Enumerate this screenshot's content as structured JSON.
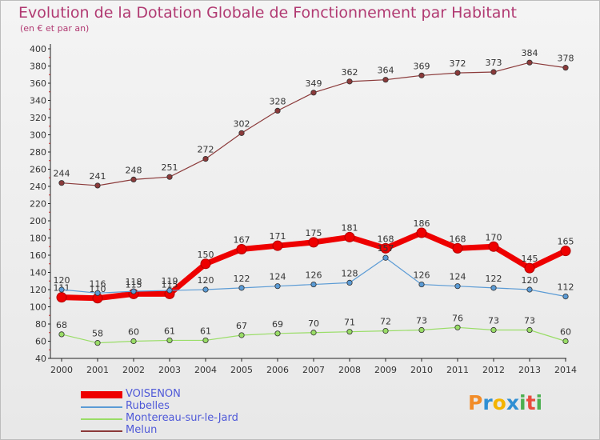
{
  "title": "Evolution de la Dotation Globale de Fonctionnement par Habitant",
  "subtitle": "(en € et par an)",
  "logo": {
    "letters": [
      "P",
      "r",
      "o",
      "x",
      "i",
      "t",
      "i"
    ],
    "colors": [
      "#f28c28",
      "#2f8fd3",
      "#f4b400",
      "#2f8fd3",
      "#4caf50",
      "#e94c3d",
      "#4caf50"
    ]
  },
  "chart_data": {
    "type": "line",
    "title": "Evolution de la Dotation Globale de Fonctionnement par Habitant",
    "subtitle": "(en € et par an)",
    "xlabel": "",
    "ylabel": "",
    "ylim": [
      40,
      400
    ],
    "ytick_step": 20,
    "x": [
      2000,
      2001,
      2002,
      2003,
      2004,
      2005,
      2006,
      2007,
      2008,
      2009,
      2010,
      2011,
      2012,
      2013,
      2014
    ],
    "series": [
      {
        "name": "VOISENON",
        "color": "#ee0000",
        "bold": true,
        "values": [
          111,
          110,
          115,
          115,
          150,
          167,
          171,
          175,
          181,
          168,
          186,
          168,
          170,
          145,
          165
        ]
      },
      {
        "name": "Rubelles",
        "color": "#5b9bd5",
        "bold": false,
        "values": [
          120,
          116,
          118,
          119,
          120,
          122,
          124,
          126,
          128,
          157,
          126,
          124,
          122,
          120,
          112
        ]
      },
      {
        "name": "Montereau-sur-le-Jard",
        "color": "#99dd66",
        "bold": false,
        "values": [
          68,
          58,
          60,
          61,
          61,
          67,
          69,
          70,
          71,
          72,
          73,
          76,
          73,
          73,
          60
        ]
      },
      {
        "name": "Melun",
        "color": "#8b3a3a",
        "bold": false,
        "values": [
          244,
          241,
          248,
          251,
          272,
          302,
          328,
          349,
          362,
          364,
          369,
          372,
          373,
          384,
          378
        ]
      }
    ],
    "data_labels": [
      [
        "111",
        "110",
        "115",
        "115",
        "150",
        "167",
        "171",
        "175",
        "181",
        "168",
        "186",
        "168",
        "170",
        "145",
        "165"
      ],
      [
        "120",
        "116",
        "118",
        "119",
        "120",
        "122",
        "124",
        "126",
        "128",
        "157",
        "126",
        "124",
        "122",
        "120",
        "112"
      ],
      [
        "68",
        "58",
        "60",
        "61",
        "61",
        "67",
        "69",
        "70",
        "71",
        "72",
        "73",
        "76",
        "73",
        "73",
        "60"
      ],
      [
        "244",
        "241",
        "248",
        "251",
        "272",
        "302",
        "328",
        "349",
        "362",
        "364",
        "369",
        "372",
        "373",
        "384",
        "378"
      ]
    ],
    "grid": false,
    "legend_position": "bottom-left"
  }
}
